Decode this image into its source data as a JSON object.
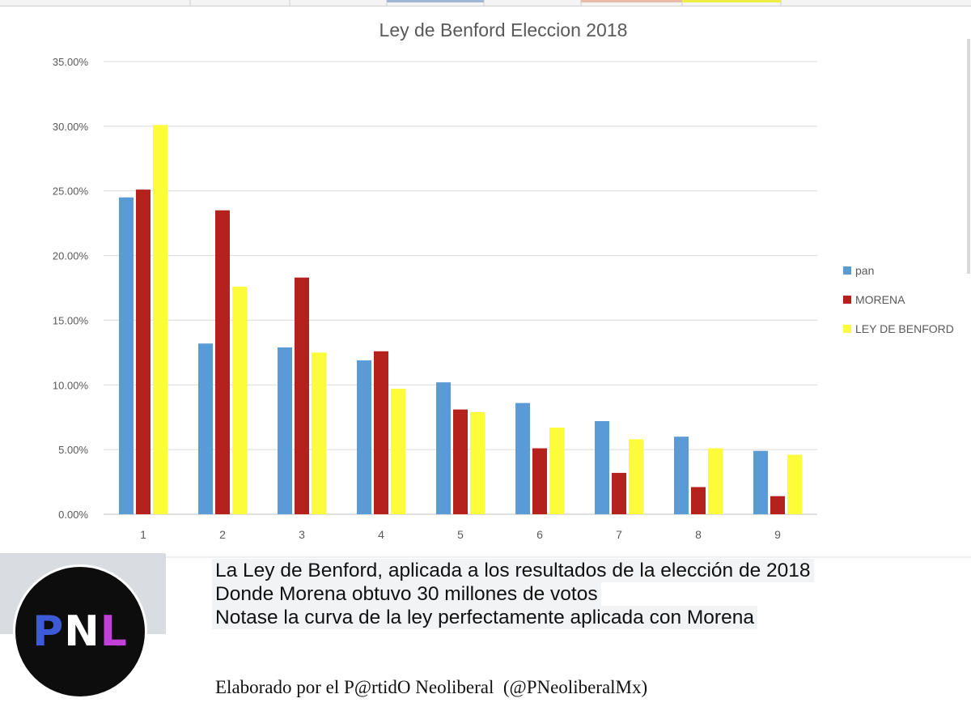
{
  "chart_data": {
    "type": "bar",
    "title": "Ley de Benford Eleccion 2018",
    "xlabel": "",
    "ylabel": "",
    "ylim": [
      0,
      0.35
    ],
    "y_ticks": [
      "0.00%",
      "5.00%",
      "10.00%",
      "15.00%",
      "20.00%",
      "25.00%",
      "30.00%",
      "35.00%"
    ],
    "categories": [
      "1",
      "2",
      "3",
      "4",
      "5",
      "6",
      "7",
      "8",
      "9"
    ],
    "grid": true,
    "legend_position": "right",
    "series": [
      {
        "name": "pan",
        "color": "#5b9bd5",
        "values": [
          0.245,
          0.132,
          0.129,
          0.119,
          0.102,
          0.086,
          0.072,
          0.06,
          0.049
        ]
      },
      {
        "name": "MORENA",
        "color": "#b5221e",
        "values": [
          0.251,
          0.235,
          0.183,
          0.126,
          0.081,
          0.051,
          0.032,
          0.021,
          0.014
        ]
      },
      {
        "name": "LEY DE BENFORD",
        "color": "#fcfc3a",
        "values": [
          0.301,
          0.176,
          0.125,
          0.097,
          0.079,
          0.067,
          0.058,
          0.051,
          0.046
        ]
      }
    ]
  },
  "logo": {
    "letters": [
      "P",
      "N",
      "L"
    ],
    "colors": [
      "#3d5bd8",
      "#ffffff",
      "#c040d8"
    ]
  },
  "caption": {
    "lines": [
      "La Ley de Benford, aplicada a los resultados de la elección de 2018",
      "Donde Morena obtuvo 30 millones de votos",
      "Notase la curva de la ley perfectamente aplicada con Morena"
    ]
  },
  "credit": "Elaborado por el P@rtidO Neoliberal  (@PNeoliberalMx)"
}
